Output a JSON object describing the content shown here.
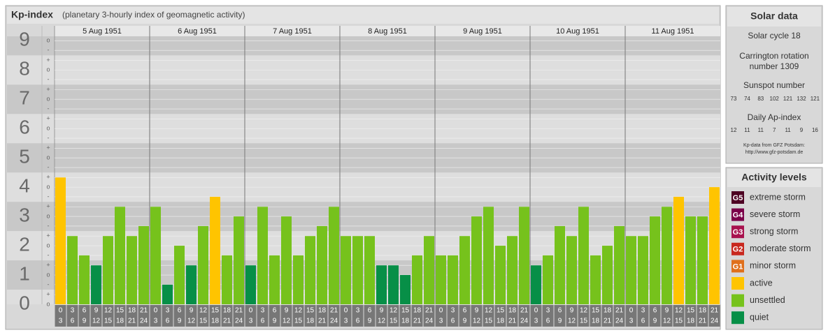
{
  "chart_data": {
    "type": "bar",
    "title": "Kp-index",
    "subtitle": "(planetary 3-hourly index of geomagnetic activity)",
    "days": [
      "5 Aug 1951",
      "6 Aug 1951",
      "7 Aug 1951",
      "8 Aug 1951",
      "9 Aug 1951",
      "10 Aug 1951",
      "11 Aug 1951"
    ],
    "categories": [
      [
        "0",
        "3"
      ],
      [
        "3",
        "6"
      ],
      [
        "6",
        "9"
      ],
      [
        "9",
        "12"
      ],
      [
        "12",
        "15"
      ],
      [
        "15",
        "18"
      ],
      [
        "18",
        "21"
      ],
      [
        "21",
        "24"
      ],
      [
        "0",
        "3"
      ],
      [
        "3",
        "6"
      ],
      [
        "6",
        "9"
      ],
      [
        "9",
        "12"
      ],
      [
        "12",
        "15"
      ],
      [
        "15",
        "18"
      ],
      [
        "18",
        "21"
      ],
      [
        "21",
        "24"
      ],
      [
        "0",
        "3"
      ],
      [
        "3",
        "6"
      ],
      [
        "6",
        "9"
      ],
      [
        "9",
        "12"
      ],
      [
        "12",
        "15"
      ],
      [
        "15",
        "18"
      ],
      [
        "18",
        "21"
      ],
      [
        "21",
        "24"
      ],
      [
        "0",
        "3"
      ],
      [
        "3",
        "6"
      ],
      [
        "6",
        "9"
      ],
      [
        "9",
        "12"
      ],
      [
        "12",
        "15"
      ],
      [
        "15",
        "18"
      ],
      [
        "18",
        "21"
      ],
      [
        "21",
        "24"
      ],
      [
        "0",
        "3"
      ],
      [
        "3",
        "6"
      ],
      [
        "6",
        "9"
      ],
      [
        "9",
        "12"
      ],
      [
        "12",
        "15"
      ],
      [
        "15",
        "18"
      ],
      [
        "18",
        "21"
      ],
      [
        "21",
        "24"
      ],
      [
        "0",
        "3"
      ],
      [
        "3",
        "6"
      ],
      [
        "6",
        "9"
      ],
      [
        "9",
        "12"
      ],
      [
        "12",
        "15"
      ],
      [
        "15",
        "18"
      ],
      [
        "18",
        "21"
      ],
      [
        "21",
        "24"
      ],
      [
        "0",
        "3"
      ],
      [
        "3",
        "6"
      ],
      [
        "6",
        "9"
      ],
      [
        "9",
        "12"
      ],
      [
        "12",
        "15"
      ],
      [
        "15",
        "18"
      ],
      [
        "18",
        "21"
      ],
      [
        "21",
        "24"
      ]
    ],
    "values": [
      4.33,
      2.33,
      1.67,
      1.33,
      2.33,
      3.33,
      2.33,
      2.67,
      3.33,
      0.67,
      2,
      1.33,
      2.67,
      3.67,
      1.67,
      3,
      1.33,
      3.33,
      1.67,
      3,
      1.67,
      2.33,
      2.67,
      3.33,
      2.33,
      2.33,
      2.33,
      1.33,
      1.33,
      1,
      1.67,
      2.33,
      1.67,
      1.67,
      2.33,
      3,
      3.33,
      2,
      2.33,
      3.33,
      1.33,
      1.67,
      2.67,
      2.33,
      3.33,
      1.67,
      2,
      2.67,
      2.33,
      2.33,
      3,
      3.33,
      3.67,
      3,
      3,
      4
    ],
    "colors": [
      "#ffc400",
      "#76c21c",
      "#76c21c",
      "#078f47",
      "#76c21c",
      "#76c21c",
      "#76c21c",
      "#76c21c",
      "#76c21c",
      "#078f47",
      "#76c21c",
      "#078f47",
      "#76c21c",
      "#ffc400",
      "#76c21c",
      "#76c21c",
      "#078f47",
      "#76c21c",
      "#76c21c",
      "#76c21c",
      "#76c21c",
      "#76c21c",
      "#76c21c",
      "#76c21c",
      "#76c21c",
      "#76c21c",
      "#76c21c",
      "#078f47",
      "#078f47",
      "#078f47",
      "#76c21c",
      "#76c21c",
      "#76c21c",
      "#76c21c",
      "#76c21c",
      "#76c21c",
      "#76c21c",
      "#76c21c",
      "#76c21c",
      "#76c21c",
      "#078f47",
      "#76c21c",
      "#76c21c",
      "#76c21c",
      "#76c21c",
      "#76c21c",
      "#76c21c",
      "#76c21c",
      "#76c21c",
      "#76c21c",
      "#76c21c",
      "#76c21c",
      "#ffc400",
      "#76c21c",
      "#76c21c",
      "#ffc400"
    ],
    "ylim": [
      0,
      9.15
    ],
    "yticks": [
      0,
      1,
      2,
      3,
      4,
      5,
      6,
      7,
      8,
      9
    ],
    "subticks": [
      {
        "value": 0,
        "label": "o"
      },
      {
        "value": 0.33,
        "label": "+"
      },
      {
        "value": 0.67,
        "label": "-"
      },
      {
        "value": 1,
        "label": "o"
      },
      {
        "value": 1.33,
        "label": "+"
      },
      {
        "value": 1.67,
        "label": "-"
      },
      {
        "value": 2,
        "label": "o"
      },
      {
        "value": 2.33,
        "label": "+"
      },
      {
        "value": 2.67,
        "label": "-"
      },
      {
        "value": 3,
        "label": "o"
      },
      {
        "value": 3.33,
        "label": "+"
      },
      {
        "value": 3.67,
        "label": "-"
      },
      {
        "value": 4,
        "label": "o"
      },
      {
        "value": 4.33,
        "label": "+"
      },
      {
        "value": 4.67,
        "label": "-"
      },
      {
        "value": 5,
        "label": "o"
      },
      {
        "value": 5.33,
        "label": "+"
      },
      {
        "value": 5.67,
        "label": "-"
      },
      {
        "value": 6,
        "label": "o"
      },
      {
        "value": 6.33,
        "label": "+"
      },
      {
        "value": 6.67,
        "label": "-"
      },
      {
        "value": 7,
        "label": "o"
      },
      {
        "value": 7.33,
        "label": "+"
      },
      {
        "value": 7.67,
        "label": "-"
      },
      {
        "value": 8,
        "label": "o"
      },
      {
        "value": 8.33,
        "label": "+"
      },
      {
        "value": 8.67,
        "label": "-"
      },
      {
        "value": 9,
        "label": "o"
      }
    ]
  },
  "solar_data": {
    "title": "Solar data",
    "cycle": "Solar cycle 18",
    "rotation": [
      "Carrington rotation",
      "number 1309"
    ],
    "sunspot_title": "Sunspot number",
    "sunspots": [
      "73",
      "74",
      "83",
      "102",
      "121",
      "132",
      "121"
    ],
    "ap_title": "Daily Ap-index",
    "ap": [
      "12",
      "11",
      "11",
      "7",
      "11",
      "9",
      "16"
    ],
    "source": [
      "Kp-data from GFZ Potsdam:",
      "http://www.gfz-potsdam.de"
    ]
  },
  "activity_levels": {
    "title": "Activity levels",
    "items": [
      {
        "badge": "G5",
        "label": "extreme storm",
        "color": "#4d0022"
      },
      {
        "badge": "G4",
        "label": "severe storm",
        "color": "#7a0048"
      },
      {
        "badge": "G3",
        "label": "strong storm",
        "color": "#a8124e"
      },
      {
        "badge": "G2",
        "label": "moderate storm",
        "color": "#c8281e"
      },
      {
        "badge": "G1",
        "label": "minor storm",
        "color": "#e0701c"
      },
      {
        "badge": null,
        "label": "active",
        "color": "#ffc400"
      },
      {
        "badge": null,
        "label": "unsettled",
        "color": "#76c21c"
      },
      {
        "badge": null,
        "label": "quiet",
        "color": "#078f47"
      }
    ]
  }
}
